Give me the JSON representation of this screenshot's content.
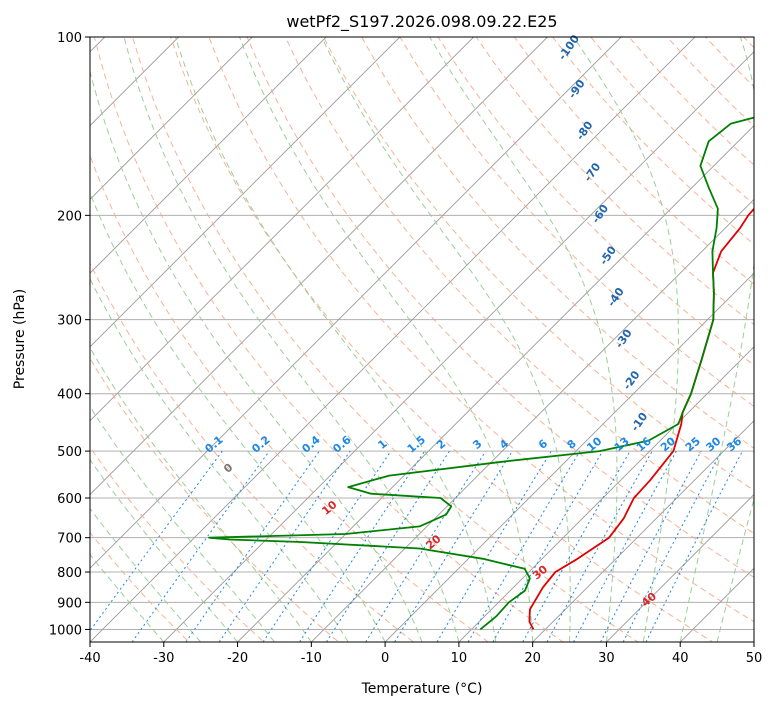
{
  "chart_data": {
    "type": "line",
    "subtype": "skew-t log-p diagram",
    "title": "wetPf2_S197.2026.098.09.22.E25",
    "xlabel": "Temperature (°C)",
    "ylabel": "Pressure (hPa)",
    "xlim": [
      -40,
      50
    ],
    "ylim": [
      1050,
      100
    ],
    "y_scale": "log",
    "grid": true,
    "x_ticks": [
      -40,
      -30,
      -20,
      -10,
      0,
      10,
      20,
      30,
      40,
      50
    ],
    "y_ticks": [
      1000,
      900,
      800,
      700,
      600,
      500,
      400,
      300,
      200,
      100
    ],
    "colors": {
      "temperature": "#e00000",
      "dewpoint": "#008000",
      "isotherm": "#888888",
      "dry_adiabat": "#f4a582",
      "moist_adiabat": "#8fc98f",
      "mixing_ratio": "#1e88e5",
      "moist_label": "#2166ac",
      "dry_label": "#d62728"
    },
    "series": [
      {
        "key": "temperature",
        "points": [
          [
            1000,
            18.4
          ],
          [
            970,
            16.8
          ],
          [
            925,
            15.2
          ],
          [
            850,
            14.0
          ],
          [
            800,
            13.6
          ],
          [
            760,
            14.8
          ],
          [
            700,
            16.2
          ],
          [
            650,
            15.6
          ],
          [
            600,
            14.2
          ],
          [
            560,
            14.0
          ],
          [
            500,
            13.2
          ],
          [
            450,
            10.6
          ],
          [
            430,
            9.2
          ],
          [
            400,
            7.8
          ],
          [
            350,
            4.6
          ],
          [
            300,
            0.8
          ],
          [
            270,
            -2.8
          ],
          [
            250,
            -5.6
          ],
          [
            230,
            -7.4
          ],
          [
            210,
            -8.0
          ],
          [
            200,
            -8.6
          ],
          [
            190,
            -8.8
          ],
          [
            175,
            -5.2
          ],
          [
            160,
            -2.2
          ],
          [
            145,
            -0.2
          ],
          [
            130,
            0.4
          ],
          [
            120,
            2.0
          ],
          [
            110,
            4.6
          ],
          [
            100,
            6.2
          ]
        ]
      },
      {
        "key": "dewpoint",
        "points": [
          [
            1000,
            11.2
          ],
          [
            950,
            11.6
          ],
          [
            900,
            11.4
          ],
          [
            860,
            12.0
          ],
          [
            820,
            11.0
          ],
          [
            790,
            9.0
          ],
          [
            760,
            2.0
          ],
          [
            730,
            -8.0
          ],
          [
            712,
            -25.0
          ],
          [
            705,
            -35.0
          ],
          [
            700,
            -38.0
          ],
          [
            690,
            -20.0
          ],
          [
            670,
            -11.0
          ],
          [
            640,
            -9.0
          ],
          [
            620,
            -9.4
          ],
          [
            600,
            -12.0
          ],
          [
            590,
            -22.0
          ],
          [
            575,
            -26.0
          ],
          [
            550,
            -22.0
          ],
          [
            520,
            -8.0
          ],
          [
            500,
            3.2
          ],
          [
            480,
            8.4
          ],
          [
            450,
            10.2
          ],
          [
            430,
            9.2
          ],
          [
            400,
            7.8
          ],
          [
            350,
            4.6
          ],
          [
            300,
            0.8
          ],
          [
            270,
            -2.8
          ],
          [
            250,
            -5.6
          ],
          [
            230,
            -8.6
          ],
          [
            210,
            -11.2
          ],
          [
            195,
            -13.6
          ],
          [
            180,
            -17.6
          ],
          [
            165,
            -21.8
          ],
          [
            150,
            -24.0
          ],
          [
            140,
            -23.4
          ],
          [
            130,
            -16.0
          ],
          [
            120,
            -14.0
          ],
          [
            110,
            -16.8
          ],
          [
            105,
            -11.8
          ],
          [
            100,
            -4.0
          ]
        ]
      }
    ],
    "dry_adiabat_labels": [
      "0",
      "10",
      "20",
      "30",
      "40"
    ],
    "moist_adiabat_labels": [
      "-100",
      "-90",
      "-80",
      "-70",
      "-60",
      "-50",
      "-40",
      "-30",
      "-20",
      "-10"
    ],
    "mixing_ratio_labels": [
      "0.1",
      "0.2",
      "0.4",
      "0.6",
      "1",
      "1.5",
      "2",
      "3",
      "4",
      "6",
      "8",
      "10",
      "13",
      "16",
      "20",
      "25",
      "30",
      "36"
    ]
  }
}
